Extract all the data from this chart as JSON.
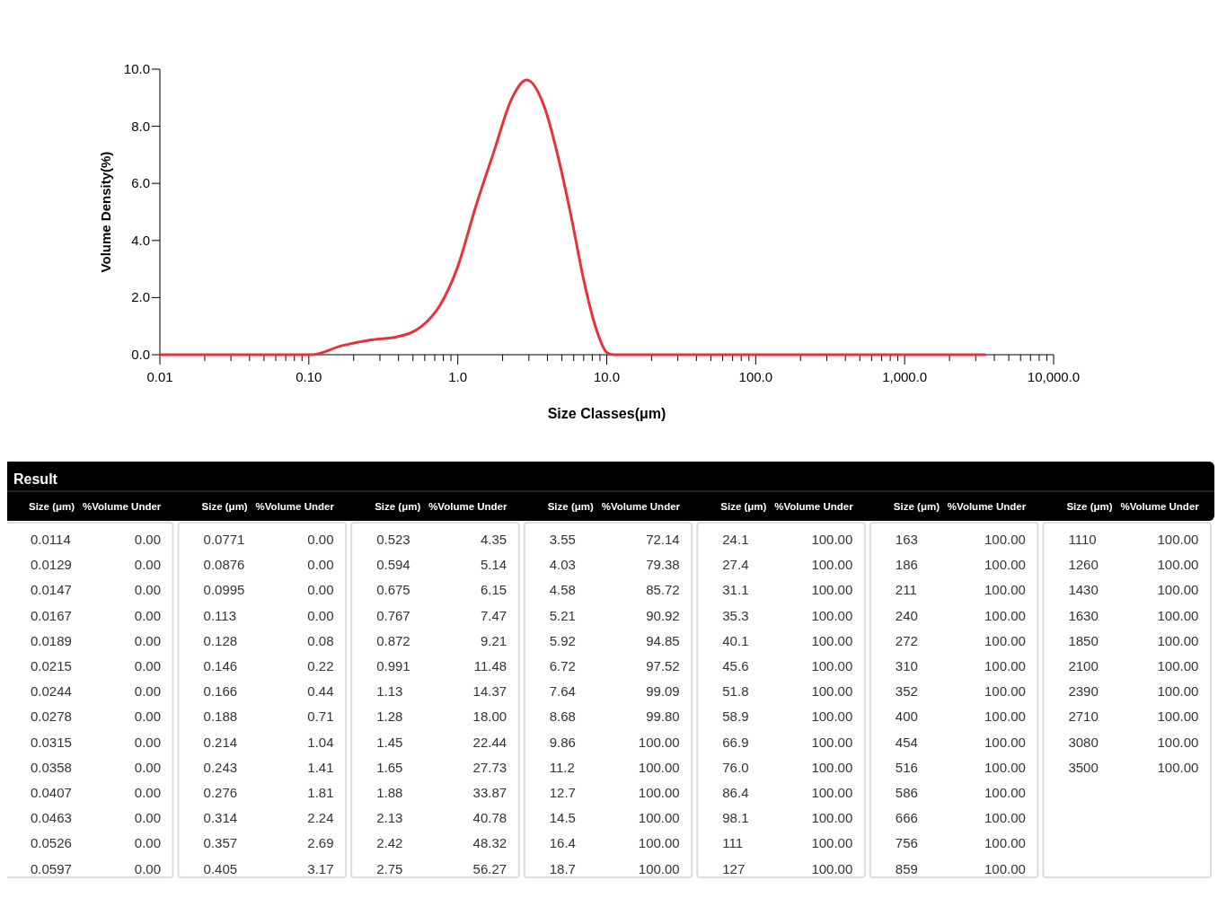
{
  "chart_data": [
    {
      "type": "line",
      "xlabel": "Size Classes(μm)",
      "ylabel": "Volume Density(%)",
      "log": "x",
      "grid": false,
      "marker": "none",
      "line_style": "solid",
      "xlim": [
        0.01,
        10000
      ],
      "ylim": [
        0,
        10
      ],
      "xticks": [
        {
          "value": 0.01,
          "label": "0.01"
        },
        {
          "value": 0.02,
          "label": null
        },
        {
          "value": 0.03,
          "label": null
        },
        {
          "value": 0.04,
          "label": null
        },
        {
          "value": 0.05,
          "label": null
        },
        {
          "value": 0.06,
          "label": null
        },
        {
          "value": 0.07,
          "label": null
        },
        {
          "value": 0.08,
          "label": null
        },
        {
          "value": 0.09,
          "label": null
        },
        {
          "value": 0.1,
          "label": "0.10"
        },
        {
          "value": 0.2,
          "label": null
        },
        {
          "value": 0.3,
          "label": null
        },
        {
          "value": 0.4,
          "label": null
        },
        {
          "value": 0.5,
          "label": null
        },
        {
          "value": 0.6,
          "label": null
        },
        {
          "value": 0.7,
          "label": null
        },
        {
          "value": 0.8,
          "label": null
        },
        {
          "value": 0.9,
          "label": null
        },
        {
          "value": 1,
          "label": "1.0"
        },
        {
          "value": 2,
          "label": null
        },
        {
          "value": 3,
          "label": null
        },
        {
          "value": 4,
          "label": null
        },
        {
          "value": 5,
          "label": null
        },
        {
          "value": 6,
          "label": null
        },
        {
          "value": 7,
          "label": null
        },
        {
          "value": 8,
          "label": null
        },
        {
          "value": 9,
          "label": null
        },
        {
          "value": 10,
          "label": "10.0"
        },
        {
          "value": 20,
          "label": null
        },
        {
          "value": 30,
          "label": null
        },
        {
          "value": 40,
          "label": null
        },
        {
          "value": 50,
          "label": null
        },
        {
          "value": 60,
          "label": null
        },
        {
          "value": 70,
          "label": null
        },
        {
          "value": 80,
          "label": null
        },
        {
          "value": 90,
          "label": null
        },
        {
          "value": 100,
          "label": "100.0"
        },
        {
          "value": 200,
          "label": null
        },
        {
          "value": 300,
          "label": null
        },
        {
          "value": 400,
          "label": null
        },
        {
          "value": 500,
          "label": null
        },
        {
          "value": 600,
          "label": null
        },
        {
          "value": 700,
          "label": null
        },
        {
          "value": 800,
          "label": null
        },
        {
          "value": 900,
          "label": null
        },
        {
          "value": 1000,
          "label": "1,000.0"
        },
        {
          "value": 2000,
          "label": null
        },
        {
          "value": 3000,
          "label": null
        },
        {
          "value": 4000,
          "label": null
        },
        {
          "value": 5000,
          "label": null
        },
        {
          "value": 6000,
          "label": null
        },
        {
          "value": 7000,
          "label": null
        },
        {
          "value": 8000,
          "label": null
        },
        {
          "value": 9000,
          "label": null
        },
        {
          "value": 10000,
          "label": "10,000.0"
        }
      ],
      "yticks": [
        {
          "value": 0,
          "label": "0.0"
        },
        {
          "value": 2,
          "label": "2.0"
        },
        {
          "value": 4,
          "label": "4.0"
        },
        {
          "value": 6,
          "label": "6.0"
        },
        {
          "value": 8,
          "label": "8.0"
        },
        {
          "value": 10,
          "label": "10.0"
        }
      ],
      "series": [
        {
          "color": "#e8313b",
          "x": [
            0.01,
            0.05,
            0.104,
            0.165,
            0.261,
            0.394,
            0.574,
            0.759,
            1.0,
            1.32,
            1.74,
            2.3,
            2.9,
            3.83,
            4.8,
            5.8,
            6.97,
            8.38,
            10.1,
            11,
            100,
            1000,
            3500
          ],
          "values": [
            0,
            0,
            0,
            0.31,
            0.52,
            0.63,
            1.0,
            1.73,
            3.09,
            5.19,
            7.08,
            8.96,
            9.62,
            8.65,
            6.76,
            4.78,
            2.67,
            1.0,
            0.06,
            0,
            0,
            0,
            0
          ]
        }
      ]
    },
    {
      "type": "other",
      "title": "Result",
      "xlabel": "Size (μm)",
      "ylabel": "%Volume Under",
      "annotations": [
        "0.0114",
        "0.00",
        "0.0129",
        "0.00",
        "0.0147",
        "0.00",
        "0.0167",
        "0.00",
        "0.0189",
        "0.00",
        "0.0215",
        "0.00",
        "0.0244",
        "0.00",
        "0.0278",
        "0.00",
        "0.0315",
        "0.00",
        "0.0358",
        "0.00",
        "0.0407",
        "0.00",
        "0.0463",
        "0.00",
        "0.0526",
        "0.00",
        "0.0597",
        "0.00",
        "0.0771",
        "0.00",
        "0.0876",
        "0.00",
        "0.0995",
        "0.00",
        "0.113",
        "0.00",
        "0.128",
        "0.08",
        "0.146",
        "0.22",
        "0.166",
        "0.44",
        "0.188",
        "0.71",
        "0.214",
        "1.04",
        "0.243",
        "1.41",
        "0.276",
        "1.81",
        "0.314",
        "2.24",
        "0.357",
        "2.69",
        "0.405",
        "3.17",
        "0.523",
        "4.35",
        "0.594",
        "5.14",
        "0.675",
        "6.15",
        "0.767",
        "7.47",
        "0.872",
        "9.21",
        "0.991",
        "11.48",
        "1.13",
        "14.37",
        "1.28",
        "18.00",
        "1.45",
        "22.44",
        "1.65",
        "27.73",
        "1.88",
        "33.87",
        "2.13",
        "40.78",
        "2.42",
        "48.32",
        "2.75",
        "56.27",
        "3.55",
        "72.14",
        "4.03",
        "79.38",
        "4.58",
        "85.72",
        "5.21",
        "90.92",
        "5.92",
        "94.85",
        "6.72",
        "97.52",
        "7.64",
        "99.09",
        "8.68",
        "99.80",
        "9.86",
        "100.00",
        "11.2",
        "100.00",
        "12.7",
        "100.00",
        "14.5",
        "100.00",
        "16.4",
        "100.00",
        "18.7",
        "100.00",
        "24.1",
        "100.00",
        "27.4",
        "100.00",
        "31.1",
        "100.00",
        "35.3",
        "100.00",
        "40.1",
        "100.00",
        "45.6",
        "100.00",
        "51.8",
        "100.00",
        "58.9",
        "100.00",
        "66.9",
        "100.00",
        "76.0",
        "100.00",
        "86.4",
        "100.00",
        "98.1",
        "100.00",
        "111",
        "100.00",
        "127",
        "100.00",
        "163",
        "100.00",
        "186",
        "100.00",
        "211",
        "100.00",
        "240",
        "100.00",
        "272",
        "100.00",
        "310",
        "100.00",
        "352",
        "100.00",
        "400",
        "100.00",
        "454",
        "100.00",
        "516",
        "100.00",
        "586",
        "100.00",
        "666",
        "100.00",
        "756",
        "100.00",
        "859",
        "100.00",
        "1110",
        "100.00",
        "1260",
        "100.00",
        "1430",
        "100.00",
        "1630",
        "100.00",
        "1850",
        "100.00",
        "2100",
        "100.00",
        "2390",
        "100.00",
        "2710",
        "100.00",
        "3080",
        "100.00",
        "3500",
        "100.00"
      ]
    }
  ]
}
